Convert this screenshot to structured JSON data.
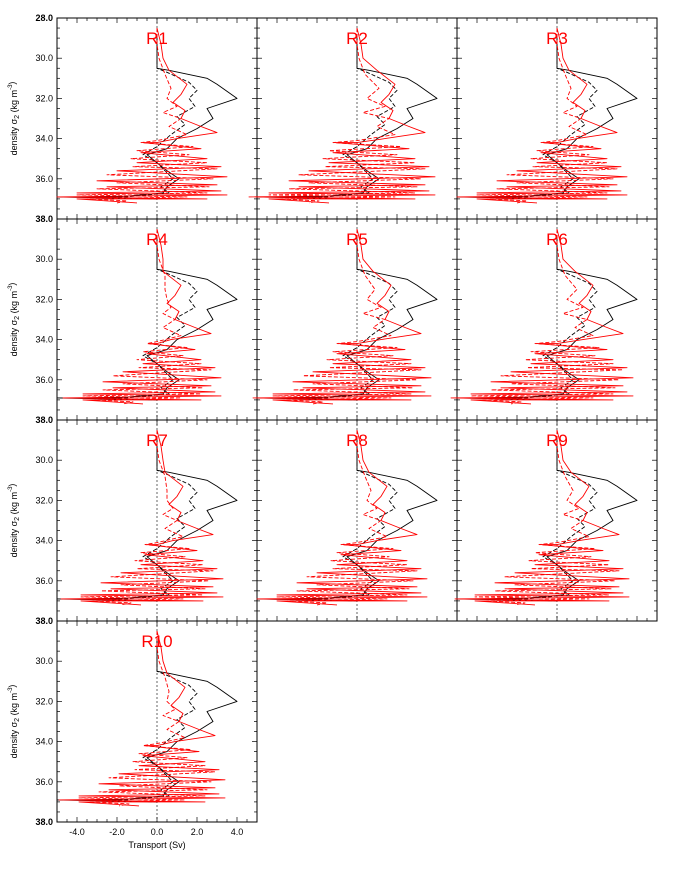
{
  "figure": {
    "ylabel_main": "density σ",
    "ylabel_sub": "2",
    "ylabel_unit": "(kg m",
    "ylabel_exp": "-3",
    "ylabel_close": ")",
    "xlabel": "Transport (Sv)",
    "colors": {
      "black": "#000000",
      "red": "#ff0000",
      "grid": "#000000"
    }
  },
  "chart_data": {
    "type": "line",
    "orientation": "vertical-profile",
    "panels": [
      "R1",
      "R2",
      "R3",
      "R4",
      "R5",
      "R6",
      "R7",
      "R8",
      "R9",
      "R10"
    ],
    "xlim": [
      -5,
      5
    ],
    "ylim": [
      38.0,
      28.0
    ],
    "yticks": [
      "28.0",
      "30.0",
      "32.0",
      "34.0",
      "36.0",
      "38.0"
    ],
    "xticks": [
      "-4.0",
      "-2.0",
      "0.0",
      "2.0",
      "4.0"
    ],
    "reference_line_x": 0,
    "series": [
      {
        "style": "black-solid",
        "points": [
          [
            0,
            28.9
          ],
          [
            0,
            30.5
          ],
          [
            0.6,
            30.6
          ],
          [
            2.5,
            31.0
          ],
          [
            3,
            31.3
          ],
          [
            4,
            32.0
          ],
          [
            2.5,
            32.5
          ],
          [
            2.8,
            33.0
          ],
          [
            2,
            33.5
          ],
          [
            1,
            34.0
          ],
          [
            0.5,
            34.5
          ],
          [
            -0.5,
            34.8
          ],
          [
            0,
            35.2
          ],
          [
            0.5,
            35.6
          ],
          [
            1.1,
            36.0
          ],
          [
            0.5,
            36.4
          ],
          [
            0.3,
            36.7
          ],
          [
            -2,
            36.9
          ],
          [
            -5,
            36.9
          ],
          [
            0,
            37.0
          ]
        ]
      },
      {
        "style": "black-dashed",
        "points": [
          [
            0,
            28.9
          ],
          [
            0,
            30.5
          ],
          [
            0.5,
            30.7
          ],
          [
            1.6,
            31.2
          ],
          [
            2,
            31.6
          ],
          [
            1.6,
            32.0
          ],
          [
            1.9,
            32.4
          ],
          [
            1.0,
            32.9
          ],
          [
            1.4,
            33.3
          ],
          [
            0.7,
            33.8
          ],
          [
            0,
            34.4
          ],
          [
            -0.7,
            34.8
          ],
          [
            0,
            35.2
          ],
          [
            0.4,
            35.6
          ],
          [
            0.8,
            36.0
          ],
          [
            0.2,
            36.4
          ],
          [
            0.6,
            36.7
          ],
          [
            -1.5,
            36.9
          ],
          [
            -3.5,
            36.9
          ],
          [
            0,
            37.0
          ]
        ]
      },
      {
        "style": "red-solid",
        "points": [
          [
            0,
            28.5
          ],
          [
            0.2,
            29.3
          ],
          [
            0.3,
            30.0
          ],
          [
            0.6,
            30.6
          ],
          [
            1.5,
            31.3
          ],
          [
            1.2,
            31.8
          ],
          [
            0.8,
            32.2
          ],
          [
            1.4,
            32.6
          ],
          [
            1.2,
            33.0
          ],
          [
            2.2,
            33.4
          ],
          [
            3,
            33.7
          ],
          [
            1,
            34.0
          ],
          [
            0,
            34.2
          ],
          [
            -0.7,
            34.2
          ],
          [
            2.2,
            34.5
          ],
          [
            -0.8,
            34.7
          ],
          [
            2.5,
            35.0
          ],
          [
            -1,
            35.2
          ],
          [
            3.2,
            35.4
          ],
          [
            -2,
            35.6
          ],
          [
            3.5,
            35.9
          ],
          [
            -3,
            36.1
          ],
          [
            3,
            36.3
          ],
          [
            -2.5,
            36.4
          ],
          [
            3.2,
            36.6
          ],
          [
            -4,
            36.7
          ],
          [
            3.5,
            36.8
          ],
          [
            -5,
            36.9
          ],
          [
            2.5,
            37.0
          ],
          [
            -4,
            37.0
          ],
          [
            -1,
            37.2
          ]
        ]
      },
      {
        "style": "red-dashed",
        "points": [
          [
            0,
            28.5
          ],
          [
            0,
            29.3
          ],
          [
            0.1,
            30.0
          ],
          [
            0.4,
            30.8
          ],
          [
            0.7,
            31.5
          ],
          [
            0.5,
            32.0
          ],
          [
            1.0,
            32.4
          ],
          [
            0.3,
            32.7
          ],
          [
            1.2,
            33.0
          ],
          [
            0.6,
            33.4
          ],
          [
            1.5,
            33.8
          ],
          [
            0,
            34.1
          ],
          [
            -0.8,
            34.2
          ],
          [
            1.8,
            34.4
          ],
          [
            -1,
            34.6
          ],
          [
            1.6,
            34.8
          ],
          [
            -1.3,
            35.0
          ],
          [
            2.5,
            35.2
          ],
          [
            -1.2,
            35.4
          ],
          [
            3,
            35.5
          ],
          [
            -2.5,
            35.8
          ],
          [
            2.8,
            36.0
          ],
          [
            -2,
            36.2
          ],
          [
            2.6,
            36.4
          ],
          [
            -3,
            36.5
          ],
          [
            2.5,
            36.7
          ],
          [
            -4,
            36.8
          ],
          [
            1.5,
            36.9
          ],
          [
            -3.5,
            37.0
          ],
          [
            -1.5,
            37.1
          ],
          [
            -2,
            37.2
          ]
        ]
      }
    ],
    "panel_variations": {
      "R2": {
        "red_shift": 0.4
      },
      "R4": {
        "red_shift": -0.3
      },
      "R5": {
        "red_shift": 0.2
      },
      "R6": {
        "red_shift": 0.3
      },
      "R7": {
        "red_shift": -0.2
      },
      "R9": {
        "red_shift": 0.1
      },
      "R10": {
        "red_shift": -0.1
      }
    }
  }
}
